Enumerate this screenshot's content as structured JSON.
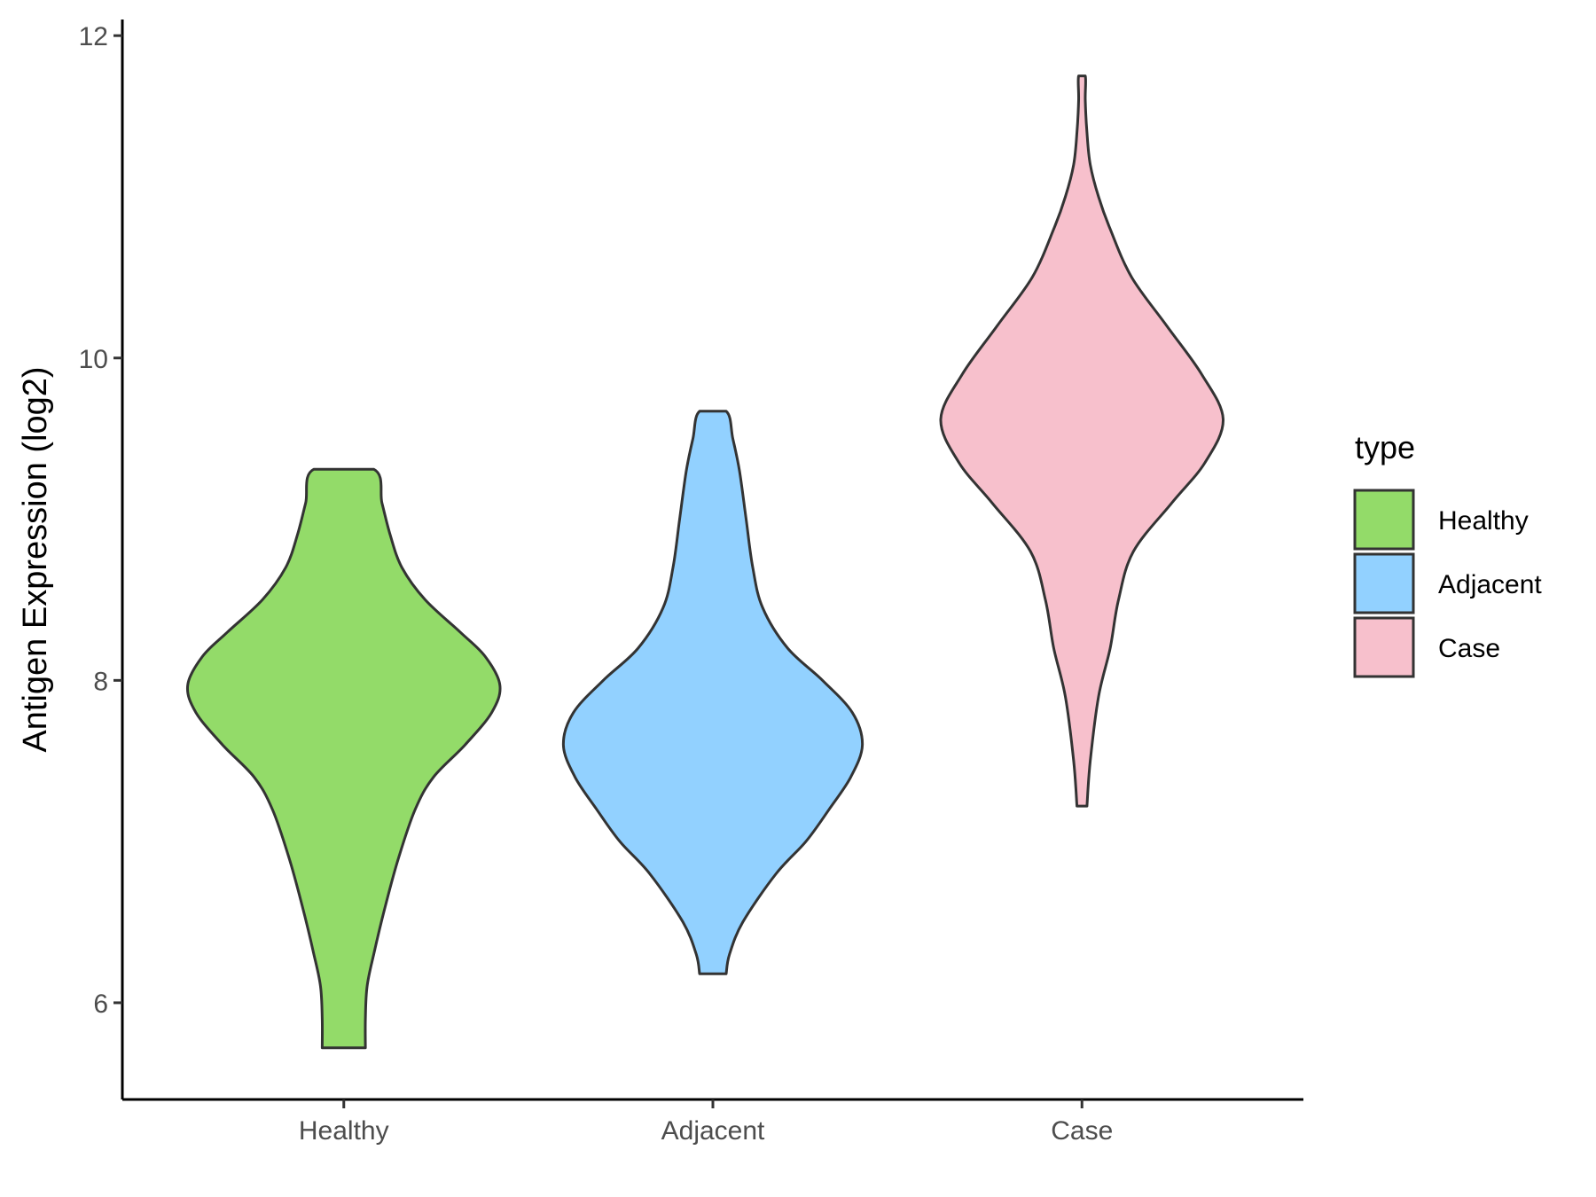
{
  "chart_data": {
    "type": "violin",
    "ylabel": "Antigen Expression (log2)",
    "xlabel": "",
    "ylim": [
      5.4,
      12.1
    ],
    "y_ticks": [
      6,
      8,
      10,
      12
    ],
    "categories": [
      "Healthy",
      "Adjacent",
      "Case"
    ],
    "legend": {
      "title": "type",
      "position": "right",
      "entries": [
        "Healthy",
        "Adjacent",
        "Case"
      ]
    },
    "grid": false,
    "series": [
      {
        "name": "Healthy",
        "color": "#93DB69",
        "min": 5.72,
        "max": 9.31,
        "density_profile": [
          [
            5.72,
            0.13
          ],
          [
            5.9,
            0.13
          ],
          [
            6.1,
            0.14
          ],
          [
            6.3,
            0.18
          ],
          [
            6.6,
            0.25
          ],
          [
            6.9,
            0.33
          ],
          [
            7.2,
            0.43
          ],
          [
            7.4,
            0.54
          ],
          [
            7.6,
            0.73
          ],
          [
            7.8,
            0.89
          ],
          [
            7.97,
            0.94
          ],
          [
            8.15,
            0.85
          ],
          [
            8.3,
            0.7
          ],
          [
            8.5,
            0.49
          ],
          [
            8.7,
            0.35
          ],
          [
            8.9,
            0.28
          ],
          [
            9.1,
            0.23
          ],
          [
            9.31,
            0.18
          ]
        ]
      },
      {
        "name": "Adjacent",
        "color": "#92D1FF",
        "min": 6.18,
        "max": 9.67,
        "density_profile": [
          [
            6.18,
            0.08
          ],
          [
            6.3,
            0.1
          ],
          [
            6.5,
            0.18
          ],
          [
            6.8,
            0.38
          ],
          [
            7.0,
            0.56
          ],
          [
            7.2,
            0.7
          ],
          [
            7.4,
            0.83
          ],
          [
            7.6,
            0.9
          ],
          [
            7.8,
            0.84
          ],
          [
            8.0,
            0.66
          ],
          [
            8.2,
            0.45
          ],
          [
            8.45,
            0.3
          ],
          [
            8.7,
            0.24
          ],
          [
            9.0,
            0.2
          ],
          [
            9.3,
            0.16
          ],
          [
            9.5,
            0.12
          ],
          [
            9.67,
            0.08
          ]
        ]
      },
      {
        "name": "Case",
        "color": "#F7C0CC",
        "min": 7.22,
        "max": 11.75,
        "density_profile": [
          [
            7.22,
            0.03
          ],
          [
            7.5,
            0.05
          ],
          [
            7.9,
            0.1
          ],
          [
            8.2,
            0.17
          ],
          [
            8.5,
            0.22
          ],
          [
            8.8,
            0.31
          ],
          [
            9.1,
            0.54
          ],
          [
            9.35,
            0.74
          ],
          [
            9.62,
            0.85
          ],
          [
            9.9,
            0.72
          ],
          [
            10.2,
            0.51
          ],
          [
            10.5,
            0.3
          ],
          [
            10.8,
            0.17
          ],
          [
            11.0,
            0.1
          ],
          [
            11.2,
            0.05
          ],
          [
            11.4,
            0.03
          ],
          [
            11.6,
            0.02
          ],
          [
            11.75,
            0.02
          ]
        ]
      }
    ]
  }
}
